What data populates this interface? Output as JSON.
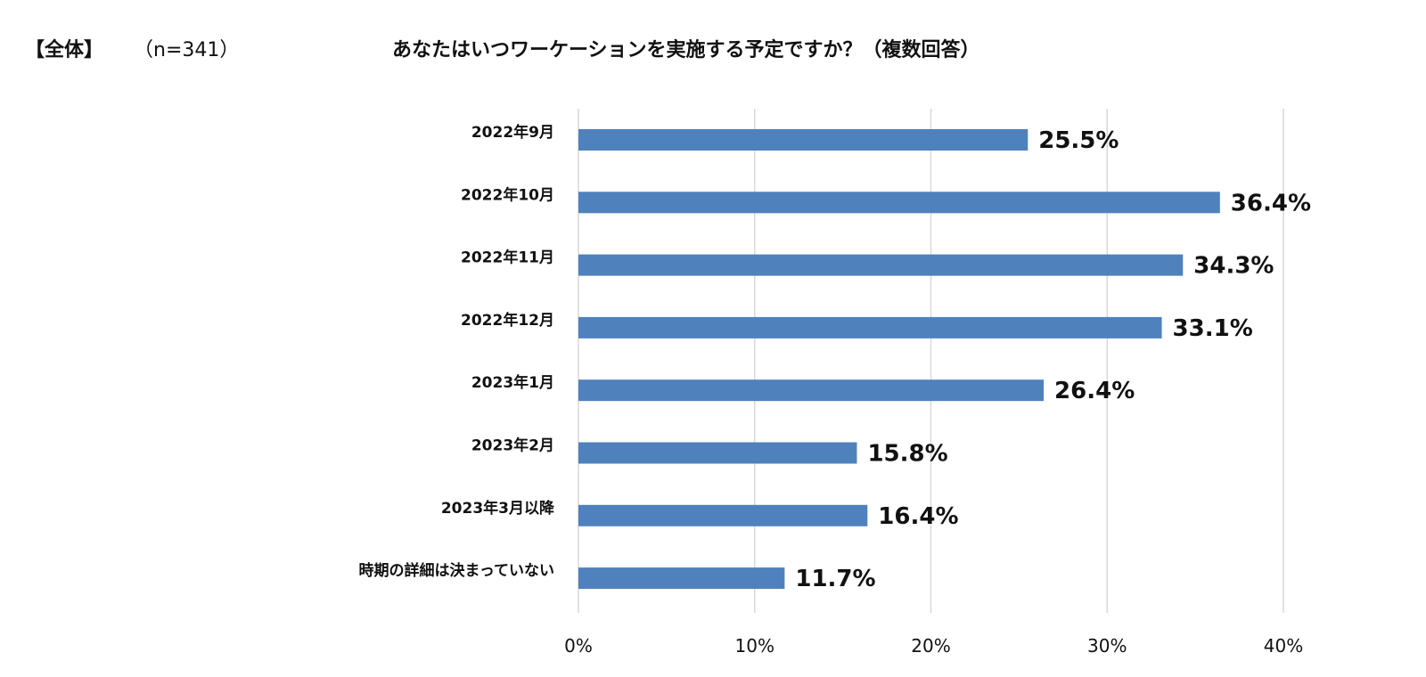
{
  "header": {
    "segment": "【全体】",
    "sample": "（n=341）",
    "title": "あなたはいつワーケーションを実施する予定ですか？（複数回答）"
  },
  "chart_data": {
    "type": "bar",
    "orientation": "horizontal",
    "categories": [
      "2022年9月",
      "2022年10月",
      "2022年11月",
      "2022年12月",
      "2023年1月",
      "2023年2月",
      "2023年3月以降",
      "時期の詳細は決まっていない"
    ],
    "values": [
      25.5,
      36.4,
      34.3,
      33.1,
      26.4,
      15.8,
      16.4,
      11.7
    ],
    "value_labels": [
      "25.5%",
      "36.4%",
      "34.3%",
      "33.1%",
      "26.4%",
      "15.8%",
      "16.4%",
      "11.7%"
    ],
    "xlim": [
      0,
      40
    ],
    "xticks": [
      0,
      10,
      20,
      30,
      40
    ],
    "xtick_labels": [
      "0%",
      "10%",
      "20%",
      "30%",
      "40%"
    ],
    "grid": true,
    "bar_color": "#4f81bd",
    "grid_color": "#d9d9d9"
  }
}
